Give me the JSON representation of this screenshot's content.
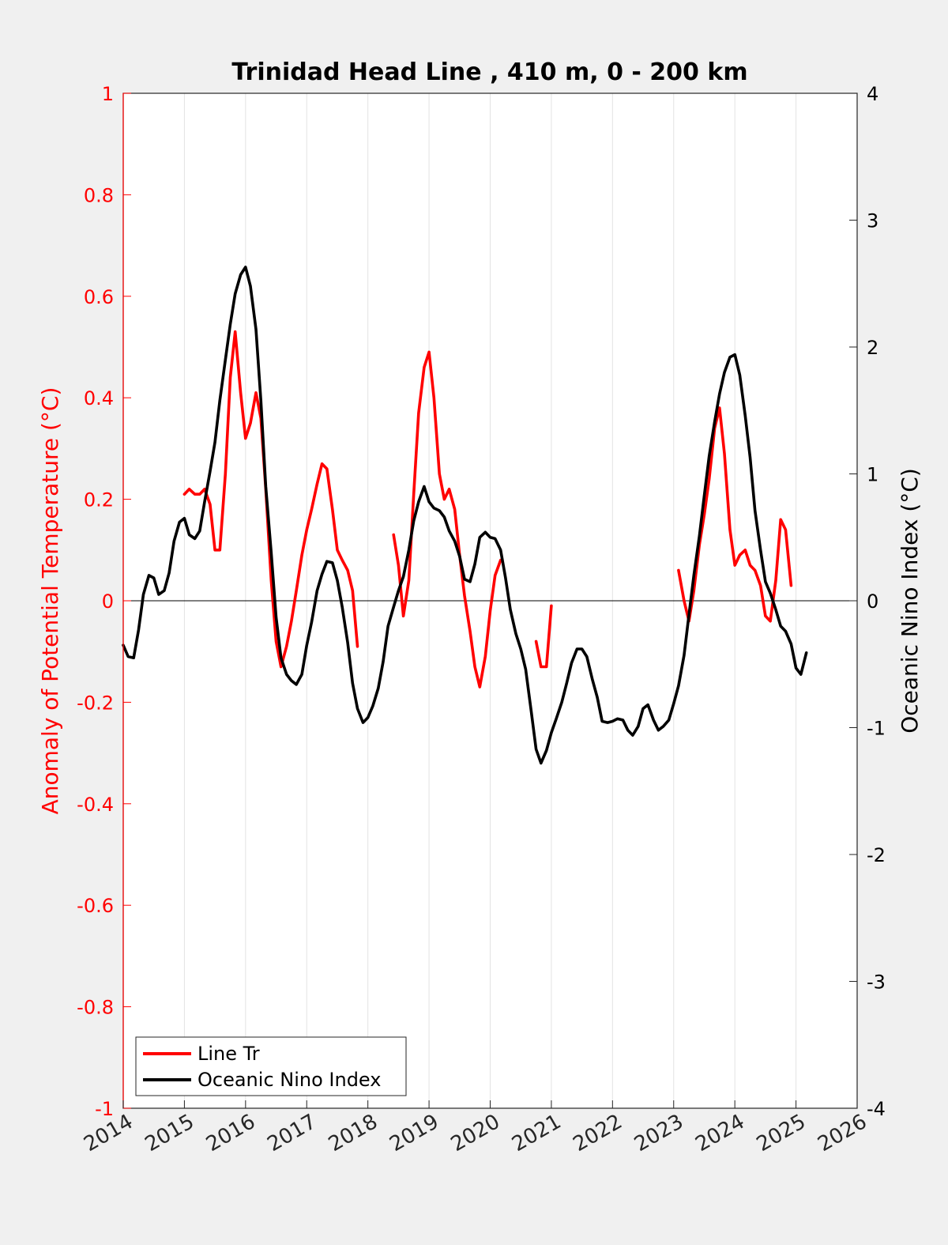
{
  "chart_data": {
    "type": "line",
    "title": "Trinidad Head Line , 410 m, 0 - 200 km",
    "ylabel_left": "Anomaly of Potential Temperature (°C)",
    "ylabel_right": "Oceanic Nino Index (°C)",
    "xlim": [
      2014,
      2026
    ],
    "ylim_left": [
      -1,
      1
    ],
    "ylim_right": [
      -4,
      4
    ],
    "x_ticks": [
      "2014",
      "2015",
      "2016",
      "2017",
      "2018",
      "2019",
      "2020",
      "2021",
      "2022",
      "2023",
      "2024",
      "2025",
      "2026"
    ],
    "y_ticks_left": [
      "-1",
      "-0.8",
      "-0.6",
      "-0.4",
      "-0.2",
      "0",
      "0.2",
      "0.4",
      "0.6",
      "0.8",
      "1"
    ],
    "y_ticks_right": [
      "-4",
      "-3",
      "-2",
      "-1",
      "0",
      "1",
      "2",
      "3",
      "4"
    ],
    "grid": "vertical",
    "zero_line": true,
    "legend_position": "bottom-left",
    "series": [
      {
        "name": "Line Tr",
        "axis": "left",
        "color": "#ff0000",
        "segments": [
          [
            [
              2015.0,
              0.21
            ],
            [
              2015.08,
              0.22
            ],
            [
              2015.17,
              0.21
            ],
            [
              2015.25,
              0.21
            ],
            [
              2015.33,
              0.22
            ],
            [
              2015.42,
              0.19
            ],
            [
              2015.5,
              0.1
            ],
            [
              2015.58,
              0.1
            ],
            [
              2015.67,
              0.25
            ],
            [
              2015.75,
              0.44
            ],
            [
              2015.83,
              0.53
            ],
            [
              2015.92,
              0.41
            ],
            [
              2016.0,
              0.32
            ],
            [
              2016.08,
              0.35
            ],
            [
              2016.17,
              0.41
            ],
            [
              2016.25,
              0.36
            ],
            [
              2016.33,
              0.22
            ],
            [
              2016.42,
              0.04
            ],
            [
              2016.5,
              -0.08
            ],
            [
              2016.58,
              -0.13
            ],
            [
              2016.67,
              -0.09
            ],
            [
              2016.75,
              -0.04
            ],
            [
              2016.83,
              0.02
            ],
            [
              2016.92,
              0.09
            ],
            [
              2017.0,
              0.14
            ],
            [
              2017.08,
              0.18
            ],
            [
              2017.17,
              0.23
            ],
            [
              2017.25,
              0.27
            ],
            [
              2017.33,
              0.26
            ],
            [
              2017.42,
              0.18
            ],
            [
              2017.5,
              0.1
            ],
            [
              2017.58,
              0.08
            ],
            [
              2017.67,
              0.06
            ],
            [
              2017.75,
              0.02
            ],
            [
              2017.83,
              -0.09
            ]
          ],
          [
            [
              2018.42,
              0.13
            ],
            [
              2018.5,
              0.07
            ],
            [
              2018.58,
              -0.03
            ],
            [
              2018.67,
              0.04
            ],
            [
              2018.75,
              0.21
            ],
            [
              2018.83,
              0.37
            ],
            [
              2018.92,
              0.46
            ],
            [
              2019.0,
              0.49
            ],
            [
              2019.08,
              0.4
            ],
            [
              2019.17,
              0.25
            ],
            [
              2019.25,
              0.2
            ],
            [
              2019.33,
              0.22
            ],
            [
              2019.42,
              0.18
            ],
            [
              2019.5,
              0.09
            ],
            [
              2019.58,
              0.01
            ],
            [
              2019.67,
              -0.06
            ],
            [
              2019.75,
              -0.13
            ],
            [
              2019.83,
              -0.17
            ],
            [
              2019.92,
              -0.11
            ],
            [
              2020.0,
              -0.02
            ],
            [
              2020.08,
              0.05
            ],
            [
              2020.17,
              0.08
            ]
          ],
          [
            [
              2020.75,
              -0.08
            ],
            [
              2020.83,
              -0.13
            ],
            [
              2020.92,
              -0.13
            ],
            [
              2021.0,
              -0.01
            ]
          ],
          [
            [
              2023.08,
              0.06
            ],
            [
              2023.17,
              0.0
            ],
            [
              2023.25,
              -0.04
            ],
            [
              2023.33,
              0.02
            ],
            [
              2023.42,
              0.11
            ],
            [
              2023.5,
              0.17
            ],
            [
              2023.58,
              0.24
            ],
            [
              2023.67,
              0.34
            ],
            [
              2023.75,
              0.38
            ],
            [
              2023.83,
              0.29
            ],
            [
              2023.92,
              0.14
            ],
            [
              2024.0,
              0.07
            ],
            [
              2024.08,
              0.09
            ],
            [
              2024.17,
              0.1
            ],
            [
              2024.25,
              0.07
            ],
            [
              2024.33,
              0.06
            ],
            [
              2024.42,
              0.03
            ],
            [
              2024.5,
              -0.03
            ],
            [
              2024.58,
              -0.04
            ],
            [
              2024.67,
              0.04
            ],
            [
              2024.75,
              0.16
            ],
            [
              2024.83,
              0.14
            ],
            [
              2024.92,
              0.03
            ]
          ]
        ]
      },
      {
        "name": "Oceanic Nino Index",
        "axis": "right",
        "color": "#000000",
        "segments": [
          [
            [
              2014.0,
              -0.35
            ],
            [
              2014.08,
              -0.44
            ],
            [
              2014.17,
              -0.45
            ],
            [
              2014.25,
              -0.23
            ],
            [
              2014.33,
              0.05
            ],
            [
              2014.42,
              0.2
            ],
            [
              2014.5,
              0.18
            ],
            [
              2014.58,
              0.05
            ],
            [
              2014.67,
              0.08
            ],
            [
              2014.75,
              0.22
            ],
            [
              2014.83,
              0.47
            ],
            [
              2014.92,
              0.62
            ],
            [
              2015.0,
              0.65
            ],
            [
              2015.08,
              0.52
            ],
            [
              2015.17,
              0.49
            ],
            [
              2015.25,
              0.55
            ],
            [
              2015.33,
              0.78
            ],
            [
              2015.42,
              1.02
            ],
            [
              2015.5,
              1.25
            ],
            [
              2015.58,
              1.58
            ],
            [
              2015.67,
              1.9
            ],
            [
              2015.75,
              2.18
            ],
            [
              2015.83,
              2.42
            ],
            [
              2015.92,
              2.57
            ],
            [
              2016.0,
              2.63
            ],
            [
              2016.08,
              2.48
            ],
            [
              2016.17,
              2.14
            ],
            [
              2016.25,
              1.58
            ],
            [
              2016.33,
              0.9
            ],
            [
              2016.42,
              0.38
            ],
            [
              2016.5,
              -0.13
            ],
            [
              2016.58,
              -0.45
            ],
            [
              2016.67,
              -0.58
            ],
            [
              2016.75,
              -0.63
            ],
            [
              2016.83,
              -0.66
            ],
            [
              2016.92,
              -0.58
            ],
            [
              2017.0,
              -0.35
            ],
            [
              2017.08,
              -0.17
            ],
            [
              2017.17,
              0.08
            ],
            [
              2017.25,
              0.21
            ],
            [
              2017.33,
              0.31
            ],
            [
              2017.42,
              0.3
            ],
            [
              2017.5,
              0.16
            ],
            [
              2017.58,
              -0.05
            ],
            [
              2017.67,
              -0.33
            ],
            [
              2017.75,
              -0.65
            ],
            [
              2017.83,
              -0.85
            ],
            [
              2017.92,
              -0.96
            ],
            [
              2018.0,
              -0.92
            ],
            [
              2018.08,
              -0.83
            ],
            [
              2018.17,
              -0.69
            ],
            [
              2018.25,
              -0.48
            ],
            [
              2018.33,
              -0.2
            ],
            [
              2018.42,
              -0.05
            ],
            [
              2018.5,
              0.08
            ],
            [
              2018.58,
              0.19
            ],
            [
              2018.67,
              0.4
            ],
            [
              2018.75,
              0.63
            ],
            [
              2018.83,
              0.78
            ],
            [
              2018.92,
              0.9
            ],
            [
              2019.0,
              0.78
            ],
            [
              2019.08,
              0.73
            ],
            [
              2019.17,
              0.71
            ],
            [
              2019.25,
              0.66
            ],
            [
              2019.33,
              0.55
            ],
            [
              2019.42,
              0.47
            ],
            [
              2019.5,
              0.35
            ],
            [
              2019.58,
              0.17
            ],
            [
              2019.67,
              0.15
            ],
            [
              2019.75,
              0.29
            ],
            [
              2019.83,
              0.5
            ],
            [
              2019.92,
              0.54
            ],
            [
              2020.0,
              0.5
            ],
            [
              2020.08,
              0.49
            ],
            [
              2020.17,
              0.4
            ],
            [
              2020.25,
              0.18
            ],
            [
              2020.33,
              -0.07
            ],
            [
              2020.42,
              -0.26
            ],
            [
              2020.5,
              -0.38
            ],
            [
              2020.58,
              -0.54
            ],
            [
              2020.67,
              -0.87
            ],
            [
              2020.75,
              -1.17
            ],
            [
              2020.83,
              -1.28
            ],
            [
              2020.92,
              -1.18
            ],
            [
              2021.0,
              -1.04
            ],
            [
              2021.08,
              -0.93
            ],
            [
              2021.17,
              -0.8
            ],
            [
              2021.25,
              -0.65
            ],
            [
              2021.33,
              -0.49
            ],
            [
              2021.42,
              -0.38
            ],
            [
              2021.5,
              -0.38
            ],
            [
              2021.58,
              -0.44
            ],
            [
              2021.67,
              -0.62
            ],
            [
              2021.75,
              -0.76
            ],
            [
              2021.83,
              -0.95
            ],
            [
              2021.92,
              -0.96
            ],
            [
              2022.0,
              -0.95
            ],
            [
              2022.08,
              -0.93
            ],
            [
              2022.17,
              -0.94
            ],
            [
              2022.25,
              -1.02
            ],
            [
              2022.33,
              -1.06
            ],
            [
              2022.42,
              -0.99
            ],
            [
              2022.5,
              -0.85
            ],
            [
              2022.58,
              -0.82
            ],
            [
              2022.67,
              -0.94
            ],
            [
              2022.75,
              -1.02
            ],
            [
              2022.83,
              -0.99
            ],
            [
              2022.92,
              -0.94
            ],
            [
              2023.0,
              -0.81
            ],
            [
              2023.08,
              -0.67
            ],
            [
              2023.17,
              -0.43
            ],
            [
              2023.25,
              -0.11
            ],
            [
              2023.33,
              0.2
            ],
            [
              2023.42,
              0.51
            ],
            [
              2023.5,
              0.83
            ],
            [
              2023.58,
              1.14
            ],
            [
              2023.67,
              1.41
            ],
            [
              2023.75,
              1.63
            ],
            [
              2023.83,
              1.8
            ],
            [
              2023.92,
              1.92
            ],
            [
              2024.0,
              1.94
            ],
            [
              2024.08,
              1.78
            ],
            [
              2024.17,
              1.46
            ],
            [
              2024.25,
              1.13
            ],
            [
              2024.33,
              0.71
            ],
            [
              2024.42,
              0.4
            ],
            [
              2024.5,
              0.15
            ],
            [
              2024.58,
              0.06
            ],
            [
              2024.67,
              -0.07
            ],
            [
              2024.75,
              -0.2
            ],
            [
              2024.83,
              -0.24
            ],
            [
              2024.92,
              -0.34
            ],
            [
              2025.0,
              -0.53
            ],
            [
              2025.08,
              -0.58
            ],
            [
              2025.17,
              -0.41
            ]
          ]
        ]
      }
    ]
  }
}
